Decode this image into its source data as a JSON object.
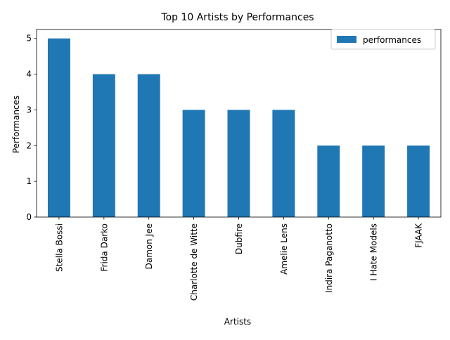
{
  "chart_data": {
    "type": "bar",
    "title": "Top 10 Artists by Performances",
    "xlabel": "Artists",
    "ylabel": "Performances",
    "categories": [
      "Stella Bossi",
      "Frida Darko",
      "Damon Jee",
      "Charlotte de Witte",
      "Dubfire",
      "Amelie Lens",
      "Indira Paganotto",
      "I Hate Models",
      "FJAAK"
    ],
    "series": [
      {
        "name": "performances",
        "values": [
          5,
          4,
          4,
          3,
          3,
          3,
          2,
          2,
          2
        ],
        "color": "#1f77b4"
      }
    ],
    "ylim": [
      0,
      5.25
    ],
    "yticks": [
      0,
      1,
      2,
      3,
      4,
      5
    ],
    "grid": false,
    "legend": "top-right"
  }
}
